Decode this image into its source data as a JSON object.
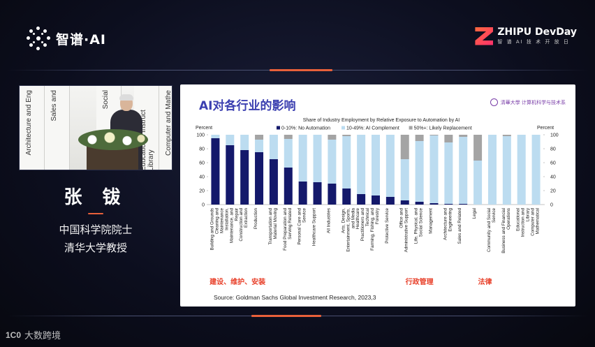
{
  "header": {
    "left_logo": "智谱·AI",
    "right_logo": "ZHIPU DevDay",
    "right_logo_sub": "智 谱 AI 技 术 开 放 日"
  },
  "speaker": {
    "name": "张 钹",
    "title_line1": "中国科学院院士",
    "title_line2": "清华大学教授",
    "backdrop_text": [
      "Architecture and Eng",
      "Sales and",
      "Social",
      "Educational Instruct Library",
      "Computer and Mathe"
    ]
  },
  "slide": {
    "title": "AI对各行业的影响",
    "logo_text": "清華大學 计算机科学与技术系",
    "source": "Source: Goldman Sachs Global Investment Research,  2023,3"
  },
  "chart_data": {
    "type": "bar",
    "stacked": true,
    "title": "Share of Industry Employment by Relative Exposure to Automation by AI",
    "ylabel_left": "Percent",
    "ylabel_right": "Percent",
    "ylim": [
      0,
      100
    ],
    "yticks": [
      0,
      20,
      40,
      60,
      80,
      100
    ],
    "legend_position": "top",
    "categories": [
      "Building and Grounds Cleaning and Maintenance",
      "Installation, Maintenance, and Repair",
      "Construction and Extraction",
      "Production",
      "Transportation and Material Moving",
      "Food Preparation and Serving Related",
      "Personal Care and Service",
      "Healthcare Support",
      "All Industries",
      "Arts, Design, Entertainment, Sports, and Media",
      "Healthcare Practitioners and Technical",
      "Farming, Fishing, and Forestry",
      "Protective Service",
      "Office and Administrative Support",
      "Life, Physical, and Social Science",
      "Management",
      "Architecture and Engineering",
      "Sales and Related",
      "Legal",
      "Community and Social Service",
      "Business and Financial Operations",
      "Educational Instruction and Library",
      "Computer and Mathematical"
    ],
    "series": [
      {
        "name": "0-10%: No Automation",
        "color": "#14196b",
        "values": [
          95,
          85,
          78,
          75,
          65,
          53,
          33,
          32,
          30,
          23,
          15,
          13,
          11,
          6,
          4,
          2,
          1,
          1,
          0,
          0,
          0,
          0,
          0
        ]
      },
      {
        "name": "10-49%: AI Complement",
        "color": "#bcdcf0",
        "values": [
          5,
          15,
          22,
          18,
          35,
          41,
          67,
          68,
          63,
          75,
          85,
          87,
          89,
          59,
          87,
          97,
          88,
          96,
          63,
          100,
          98,
          100,
          100
        ]
      },
      {
        "name": "50%+: Likely Replacement",
        "color": "#a4a4a4",
        "values": [
          0,
          0,
          0,
          7,
          0,
          6,
          0,
          0,
          7,
          2,
          0,
          0,
          0,
          35,
          9,
          1,
          11,
          3,
          37,
          0,
          2,
          0,
          0
        ]
      }
    ],
    "annotations": [
      {
        "text": "建设、维护、安装",
        "color": "#e8402a"
      },
      {
        "text": "行政管理",
        "color": "#e8402a"
      },
      {
        "text": "法律",
        "color": "#e8402a"
      }
    ]
  },
  "watermark": {
    "mark": "1C0",
    "text": "大数跨境"
  }
}
